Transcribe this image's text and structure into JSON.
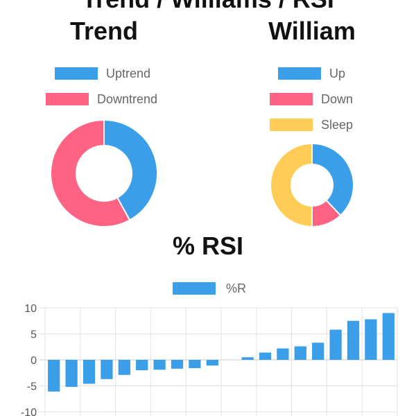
{
  "page": {
    "top_cut_text": "Trend / Williams / RSI"
  },
  "chart_data": [
    {
      "type": "pie",
      "title": "Trend",
      "donut": true,
      "labels": [
        "Uptrend",
        "Downtrend"
      ],
      "values": [
        42,
        58
      ],
      "colors": [
        "#3b9ee8",
        "#ff6384"
      ],
      "legend": "top"
    },
    {
      "type": "pie",
      "title": "William",
      "donut": true,
      "labels": [
        "Up",
        "Down",
        "Sleep"
      ],
      "values": [
        38,
        12,
        50
      ],
      "colors": [
        "#3b9ee8",
        "#ff6384",
        "#ffcd56"
      ],
      "legend": "top"
    },
    {
      "type": "bar",
      "title": "% RSI",
      "series": [
        {
          "name": "%R",
          "color": "#3b9ee8",
          "values": [
            -6.1,
            -5.2,
            -4.6,
            -3.7,
            -2.9,
            -2.0,
            -1.9,
            -1.7,
            -1.6,
            -1.1,
            0.0,
            0.5,
            1.4,
            2.2,
            2.6,
            3.3,
            5.8,
            7.5,
            7.8,
            9.0
          ]
        }
      ],
      "ylim": [
        -10,
        10
      ],
      "yticks": [
        10,
        5,
        0,
        -5,
        -10
      ],
      "grid": true,
      "legend": "top"
    }
  ]
}
